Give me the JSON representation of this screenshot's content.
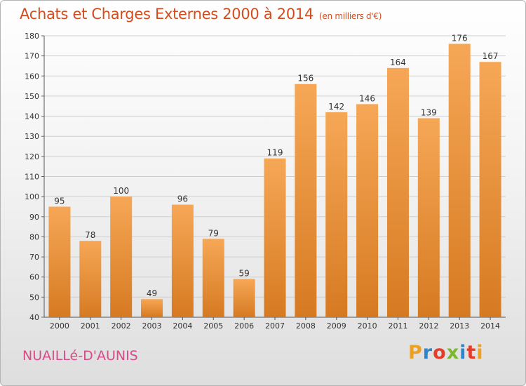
{
  "header": {
    "title": "Achats et Charges Externes 2000 à 2014",
    "subtitle": "(en milliers d'€)"
  },
  "footer": {
    "place": "NUAILLé-D'AUNIS",
    "brand": "Proxiti",
    "brand_colors": [
      "#f0a020",
      "#2a86d0",
      "#e63c2a",
      "#7cb82f",
      "#2a86d0",
      "#e63c2a",
      "#f0a020"
    ]
  },
  "colors": {
    "bar_light": "#f6a756",
    "bar_dark": "#d67a22",
    "title": "#d34c1d",
    "place": "#d94a8a"
  },
  "chart_data": {
    "type": "bar",
    "categories": [
      "2000",
      "2001",
      "2002",
      "2003",
      "2004",
      "2005",
      "2006",
      "2007",
      "2008",
      "2009",
      "2010",
      "2011",
      "2012",
      "2013",
      "2014"
    ],
    "values": [
      95,
      78,
      100,
      49,
      96,
      79,
      59,
      119,
      156,
      142,
      146,
      164,
      139,
      176,
      167
    ],
    "ylim": [
      40,
      180
    ],
    "yticks": [
      40,
      50,
      60,
      70,
      80,
      90,
      100,
      110,
      120,
      130,
      140,
      150,
      160,
      170,
      180
    ],
    "grid": true,
    "data_labels": true
  }
}
